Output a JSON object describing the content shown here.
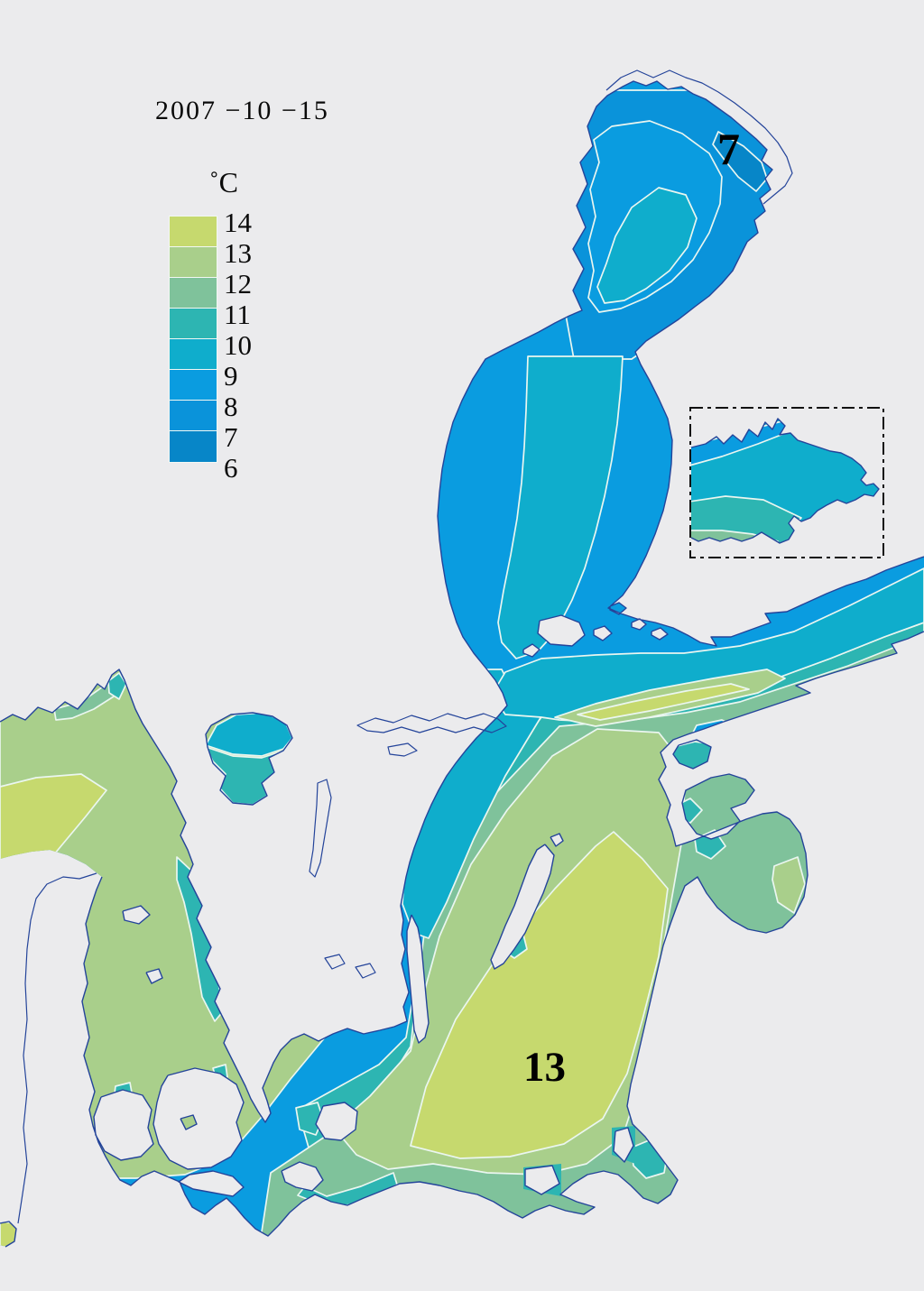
{
  "map": {
    "date_label": "2007 −10 −15",
    "labels": {
      "north": "7",
      "south": "13"
    },
    "description": "Baltic Sea surface temperature map with Gulf of Finland inset"
  },
  "legend": {
    "title": "˚C",
    "entries": [
      {
        "label": "14",
        "color": "#c6d96e"
      },
      {
        "label": "13",
        "color": "#a9cf8b"
      },
      {
        "label": "12",
        "color": "#7fc29b"
      },
      {
        "label": "11",
        "color": "#2db5b2"
      },
      {
        "label": "10",
        "color": "#0fadcc"
      },
      {
        "label": "9",
        "color": "#0a9ce0"
      },
      {
        "label": "8",
        "color": "#0a93da"
      },
      {
        "label": "7",
        "color": "#0786c8"
      },
      {
        "label": "6",
        "color": null
      }
    ]
  },
  "colors": {
    "background": "#ebebed",
    "coastline": "#24449a",
    "contour_line": "#eaf6f0",
    "inset_border": "#111111",
    "bands": {
      "b14": "#c6d96e",
      "b13": "#a9cf8b",
      "b12": "#7fc29b",
      "b11": "#2db5b2",
      "b10": "#0fadcc",
      "b9": "#0a9ce0",
      "b8": "#0a93da",
      "b7": "#0786c8"
    }
  }
}
